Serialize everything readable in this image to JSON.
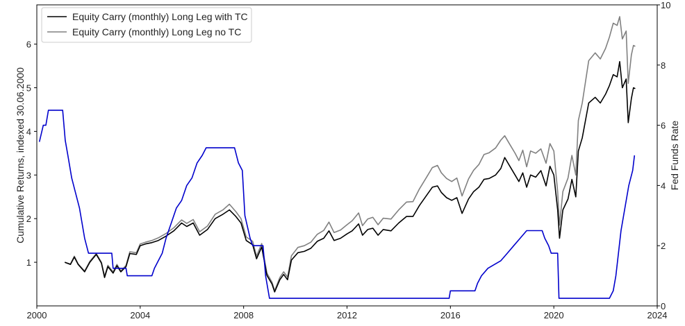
{
  "chart_data": {
    "type": "line",
    "title": "",
    "xlabel": "",
    "ylabel_left": "Cumulative Returns, indexed 30.06.2000",
    "ylabel_right": "Fed Funds Rate",
    "xlim": [
      2000.0,
      2024.0
    ],
    "ylim_left": [
      0.0,
      6.9
    ],
    "ylim_right": [
      0,
      10
    ],
    "x_ticks": [
      2000,
      2004,
      2008,
      2012,
      2016,
      2020,
      2024
    ],
    "y_ticks_left": [
      1,
      2,
      3,
      4,
      5,
      6
    ],
    "y_ticks_right": [
      0,
      2,
      4,
      6,
      8,
      10
    ],
    "grid": false,
    "legend_position": "top-left",
    "legend": [
      {
        "label": "Equity Carry (monthly) Long Leg with TC",
        "color": "#000000"
      },
      {
        "label": "Equity Carry (monthly) Long Leg no TC",
        "color": "#808080"
      }
    ],
    "series": [
      {
        "name": "Equity Carry (monthly) Long Leg with TC",
        "axis": "left",
        "color": "#000000",
        "points": [
          [
            2001.08,
            1.0
          ],
          [
            2001.3,
            0.95
          ],
          [
            2001.45,
            1.12
          ],
          [
            2001.6,
            0.95
          ],
          [
            2001.85,
            0.78
          ],
          [
            2002.05,
            1.0
          ],
          [
            2002.3,
            1.18
          ],
          [
            2002.5,
            0.98
          ],
          [
            2002.62,
            0.65
          ],
          [
            2002.75,
            0.9
          ],
          [
            2002.95,
            0.75
          ],
          [
            2003.1,
            0.92
          ],
          [
            2003.25,
            0.78
          ],
          [
            2003.45,
            0.9
          ],
          [
            2003.6,
            1.2
          ],
          [
            2003.85,
            1.18
          ],
          [
            2004.0,
            1.38
          ],
          [
            2004.2,
            1.42
          ],
          [
            2004.45,
            1.45
          ],
          [
            2004.7,
            1.5
          ],
          [
            2005.0,
            1.6
          ],
          [
            2005.3,
            1.72
          ],
          [
            2005.6,
            1.9
          ],
          [
            2005.8,
            1.82
          ],
          [
            2006.05,
            1.9
          ],
          [
            2006.3,
            1.62
          ],
          [
            2006.6,
            1.75
          ],
          [
            2006.9,
            2.0
          ],
          [
            2007.2,
            2.1
          ],
          [
            2007.45,
            2.2
          ],
          [
            2007.7,
            2.05
          ],
          [
            2007.9,
            1.9
          ],
          [
            2008.1,
            1.5
          ],
          [
            2008.35,
            1.4
          ],
          [
            2008.5,
            1.08
          ],
          [
            2008.7,
            1.35
          ],
          [
            2008.9,
            0.7
          ],
          [
            2009.1,
            0.5
          ],
          [
            2009.2,
            0.32
          ],
          [
            2009.4,
            0.6
          ],
          [
            2009.55,
            0.72
          ],
          [
            2009.7,
            0.6
          ],
          [
            2009.85,
            1.05
          ],
          [
            2010.1,
            1.22
          ],
          [
            2010.35,
            1.25
          ],
          [
            2010.6,
            1.32
          ],
          [
            2010.85,
            1.48
          ],
          [
            2011.1,
            1.55
          ],
          [
            2011.3,
            1.72
          ],
          [
            2011.5,
            1.5
          ],
          [
            2011.75,
            1.55
          ],
          [
            2012.0,
            1.65
          ],
          [
            2012.2,
            1.72
          ],
          [
            2012.45,
            1.88
          ],
          [
            2012.6,
            1.62
          ],
          [
            2012.8,
            1.75
          ],
          [
            2013.0,
            1.78
          ],
          [
            2013.2,
            1.62
          ],
          [
            2013.4,
            1.75
          ],
          [
            2013.7,
            1.72
          ],
          [
            2014.0,
            1.9
          ],
          [
            2014.3,
            2.05
          ],
          [
            2014.55,
            2.05
          ],
          [
            2014.8,
            2.3
          ],
          [
            2015.1,
            2.55
          ],
          [
            2015.3,
            2.72
          ],
          [
            2015.5,
            2.75
          ],
          [
            2015.65,
            2.6
          ],
          [
            2015.85,
            2.48
          ],
          [
            2016.05,
            2.42
          ],
          [
            2016.25,
            2.48
          ],
          [
            2016.45,
            2.12
          ],
          [
            2016.7,
            2.45
          ],
          [
            2016.9,
            2.62
          ],
          [
            2017.1,
            2.72
          ],
          [
            2017.3,
            2.9
          ],
          [
            2017.5,
            2.92
          ],
          [
            2017.75,
            3.0
          ],
          [
            2017.95,
            3.15
          ],
          [
            2018.1,
            3.4
          ],
          [
            2018.3,
            3.2
          ],
          [
            2018.5,
            3.0
          ],
          [
            2018.65,
            2.85
          ],
          [
            2018.8,
            3.05
          ],
          [
            2018.95,
            2.72
          ],
          [
            2019.1,
            3.0
          ],
          [
            2019.3,
            2.95
          ],
          [
            2019.5,
            3.1
          ],
          [
            2019.7,
            2.75
          ],
          [
            2019.85,
            3.2
          ],
          [
            2020.0,
            3.0
          ],
          [
            2020.15,
            2.2
          ],
          [
            2020.22,
            1.55
          ],
          [
            2020.35,
            2.2
          ],
          [
            2020.55,
            2.45
          ],
          [
            2020.7,
            2.9
          ],
          [
            2020.85,
            2.5
          ],
          [
            2020.95,
            3.55
          ],
          [
            2021.1,
            3.85
          ],
          [
            2021.35,
            4.65
          ],
          [
            2021.6,
            4.78
          ],
          [
            2021.8,
            4.65
          ],
          [
            2022.0,
            4.85
          ],
          [
            2022.15,
            5.05
          ],
          [
            2022.3,
            5.3
          ],
          [
            2022.45,
            5.25
          ],
          [
            2022.55,
            5.6
          ],
          [
            2022.65,
            5.0
          ],
          [
            2022.8,
            5.2
          ],
          [
            2022.88,
            4.2
          ],
          [
            2023.0,
            4.75
          ],
          [
            2023.08,
            5.0
          ],
          [
            2023.15,
            4.98
          ]
        ]
      },
      {
        "name": "Equity Carry (monthly) Long Leg no TC",
        "axis": "left",
        "color": "#808080",
        "points": [
          [
            2001.08,
            1.0
          ],
          [
            2001.3,
            0.96
          ],
          [
            2001.45,
            1.14
          ],
          [
            2001.6,
            0.96
          ],
          [
            2001.85,
            0.8
          ],
          [
            2002.05,
            1.02
          ],
          [
            2002.3,
            1.2
          ],
          [
            2002.5,
            1.0
          ],
          [
            2002.62,
            0.68
          ],
          [
            2002.75,
            0.93
          ],
          [
            2002.95,
            0.78
          ],
          [
            2003.1,
            0.95
          ],
          [
            2003.25,
            0.8
          ],
          [
            2003.45,
            0.93
          ],
          [
            2003.6,
            1.24
          ],
          [
            2003.85,
            1.22
          ],
          [
            2004.0,
            1.42
          ],
          [
            2004.2,
            1.46
          ],
          [
            2004.45,
            1.5
          ],
          [
            2004.7,
            1.56
          ],
          [
            2005.0,
            1.66
          ],
          [
            2005.3,
            1.79
          ],
          [
            2005.6,
            1.97
          ],
          [
            2005.8,
            1.89
          ],
          [
            2006.05,
            1.98
          ],
          [
            2006.3,
            1.7
          ],
          [
            2006.6,
            1.83
          ],
          [
            2006.9,
            2.1
          ],
          [
            2007.2,
            2.2
          ],
          [
            2007.45,
            2.33
          ],
          [
            2007.7,
            2.16
          ],
          [
            2007.9,
            2.0
          ],
          [
            2008.1,
            1.58
          ],
          [
            2008.35,
            1.48
          ],
          [
            2008.5,
            1.14
          ],
          [
            2008.7,
            1.43
          ],
          [
            2008.9,
            0.75
          ],
          [
            2009.1,
            0.54
          ],
          [
            2009.2,
            0.35
          ],
          [
            2009.4,
            0.65
          ],
          [
            2009.55,
            0.78
          ],
          [
            2009.7,
            0.66
          ],
          [
            2009.85,
            1.15
          ],
          [
            2010.1,
            1.34
          ],
          [
            2010.35,
            1.38
          ],
          [
            2010.6,
            1.46
          ],
          [
            2010.85,
            1.64
          ],
          [
            2011.1,
            1.73
          ],
          [
            2011.3,
            1.92
          ],
          [
            2011.5,
            1.68
          ],
          [
            2011.75,
            1.74
          ],
          [
            2012.0,
            1.86
          ],
          [
            2012.2,
            1.95
          ],
          [
            2012.45,
            2.13
          ],
          [
            2012.6,
            1.84
          ],
          [
            2012.8,
            1.99
          ],
          [
            2013.0,
            2.03
          ],
          [
            2013.2,
            1.86
          ],
          [
            2013.4,
            2.01
          ],
          [
            2013.7,
            1.99
          ],
          [
            2014.0,
            2.2
          ],
          [
            2014.3,
            2.38
          ],
          [
            2014.55,
            2.39
          ],
          [
            2014.8,
            2.68
          ],
          [
            2015.1,
            2.97
          ],
          [
            2015.3,
            3.17
          ],
          [
            2015.5,
            3.22
          ],
          [
            2015.65,
            3.05
          ],
          [
            2015.85,
            2.92
          ],
          [
            2016.05,
            2.85
          ],
          [
            2016.25,
            2.93
          ],
          [
            2016.45,
            2.52
          ],
          [
            2016.7,
            2.91
          ],
          [
            2016.9,
            3.11
          ],
          [
            2017.1,
            3.24
          ],
          [
            2017.3,
            3.47
          ],
          [
            2017.5,
            3.51
          ],
          [
            2017.75,
            3.62
          ],
          [
            2017.95,
            3.8
          ],
          [
            2018.1,
            3.9
          ],
          [
            2018.3,
            3.7
          ],
          [
            2018.5,
            3.5
          ],
          [
            2018.65,
            3.33
          ],
          [
            2018.8,
            3.57
          ],
          [
            2018.95,
            3.19
          ],
          [
            2019.1,
            3.55
          ],
          [
            2019.3,
            3.5
          ],
          [
            2019.5,
            3.6
          ],
          [
            2019.7,
            3.27
          ],
          [
            2019.85,
            3.72
          ],
          [
            2020.0,
            3.55
          ],
          [
            2020.15,
            2.62
          ],
          [
            2020.22,
            1.85
          ],
          [
            2020.35,
            2.62
          ],
          [
            2020.55,
            2.93
          ],
          [
            2020.7,
            3.45
          ],
          [
            2020.85,
            3.0
          ],
          [
            2020.95,
            4.25
          ],
          [
            2021.1,
            4.65
          ],
          [
            2021.35,
            5.62
          ],
          [
            2021.6,
            5.8
          ],
          [
            2021.8,
            5.66
          ],
          [
            2022.0,
            5.9
          ],
          [
            2022.15,
            6.16
          ],
          [
            2022.3,
            6.48
          ],
          [
            2022.45,
            6.43
          ],
          [
            2022.55,
            6.63
          ],
          [
            2022.65,
            6.12
          ],
          [
            2022.8,
            6.3
          ],
          [
            2022.88,
            5.1
          ],
          [
            2023.0,
            5.75
          ],
          [
            2023.08,
            5.97
          ],
          [
            2023.15,
            5.95
          ]
        ]
      },
      {
        "name": "Fed Funds Rate",
        "axis": "right",
        "color": "#0000cc",
        "points": [
          [
            2000.1,
            5.45
          ],
          [
            2000.25,
            6.0
          ],
          [
            2000.35,
            6.0
          ],
          [
            2000.45,
            6.5
          ],
          [
            2001.0,
            6.5
          ],
          [
            2001.1,
            5.5
          ],
          [
            2001.2,
            5.0
          ],
          [
            2001.35,
            4.25
          ],
          [
            2001.5,
            3.75
          ],
          [
            2001.65,
            3.25
          ],
          [
            2001.85,
            2.25
          ],
          [
            2002.0,
            1.75
          ],
          [
            2002.9,
            1.75
          ],
          [
            2002.95,
            1.25
          ],
          [
            2003.45,
            1.25
          ],
          [
            2003.5,
            1.0
          ],
          [
            2004.45,
            1.0
          ],
          [
            2004.55,
            1.25
          ],
          [
            2004.7,
            1.5
          ],
          [
            2004.85,
            1.75
          ],
          [
            2005.0,
            2.25
          ],
          [
            2005.2,
            2.75
          ],
          [
            2005.4,
            3.25
          ],
          [
            2005.6,
            3.5
          ],
          [
            2005.8,
            4.0
          ],
          [
            2006.0,
            4.25
          ],
          [
            2006.2,
            4.75
          ],
          [
            2006.4,
            5.0
          ],
          [
            2006.55,
            5.25
          ],
          [
            2007.65,
            5.25
          ],
          [
            2007.8,
            4.75
          ],
          [
            2007.95,
            4.5
          ],
          [
            2008.05,
            3.0
          ],
          [
            2008.25,
            2.25
          ],
          [
            2008.35,
            2.0
          ],
          [
            2008.75,
            2.0
          ],
          [
            2008.85,
            1.0
          ],
          [
            2009.0,
            0.25
          ],
          [
            2015.95,
            0.25
          ],
          [
            2016.0,
            0.5
          ],
          [
            2016.95,
            0.5
          ],
          [
            2017.05,
            0.75
          ],
          [
            2017.2,
            1.0
          ],
          [
            2017.45,
            1.25
          ],
          [
            2017.95,
            1.5
          ],
          [
            2018.2,
            1.75
          ],
          [
            2018.45,
            2.0
          ],
          [
            2018.7,
            2.25
          ],
          [
            2018.95,
            2.5
          ],
          [
            2019.55,
            2.5
          ],
          [
            2019.65,
            2.25
          ],
          [
            2019.8,
            2.0
          ],
          [
            2019.9,
            1.75
          ],
          [
            2020.15,
            1.75
          ],
          [
            2020.2,
            0.25
          ],
          [
            2022.15,
            0.25
          ],
          [
            2022.3,
            0.5
          ],
          [
            2022.4,
            1.0
          ],
          [
            2022.5,
            1.75
          ],
          [
            2022.6,
            2.5
          ],
          [
            2022.75,
            3.25
          ],
          [
            2022.9,
            4.0
          ],
          [
            2023.05,
            4.5
          ],
          [
            2023.12,
            5.0
          ]
        ]
      }
    ]
  }
}
